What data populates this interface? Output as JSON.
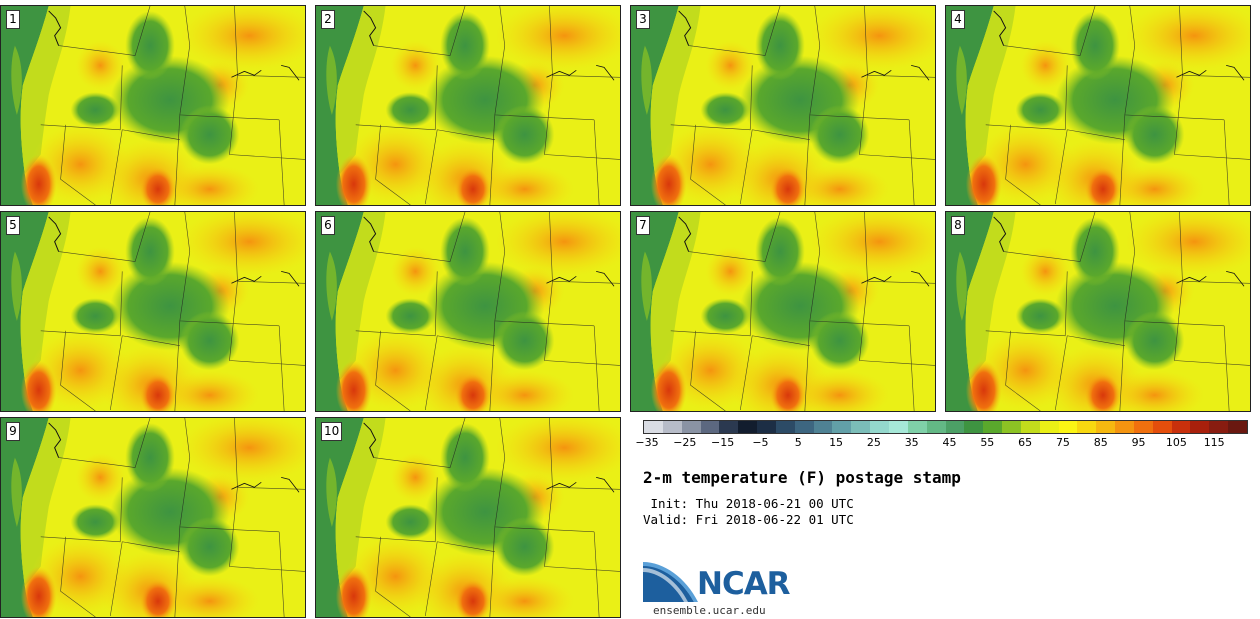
{
  "panels": [
    {
      "label": "1"
    },
    {
      "label": "2"
    },
    {
      "label": "3"
    },
    {
      "label": "4"
    },
    {
      "label": "5"
    },
    {
      "label": "6"
    },
    {
      "label": "7"
    },
    {
      "label": "8"
    },
    {
      "label": "9"
    },
    {
      "label": "10"
    }
  ],
  "colorbar": {
    "colors": [
      "#dadde4",
      "#b7bcc8",
      "#8a93a4",
      "#5c6880",
      "#2b3950",
      "#121d2e",
      "#1c2e45",
      "#2c4b66",
      "#3d6680",
      "#4f8294",
      "#62a0a8",
      "#7bbdb8",
      "#94d8cd",
      "#a6e8d8",
      "#7fd0a8",
      "#63b885",
      "#4ca066",
      "#3e9441",
      "#5aa82c",
      "#8cc324",
      "#c2dc1c",
      "#eaf016",
      "#fbf514",
      "#f8d810",
      "#f6b810",
      "#f49410",
      "#f0700e",
      "#e44e0c",
      "#c8300c",
      "#a8200c",
      "#881c10",
      "#6a1810"
    ],
    "tick_labels": [
      "−35",
      "−25",
      "−15",
      "−5",
      "5",
      "15",
      "25",
      "35",
      "45",
      "55",
      "65",
      "75",
      "85",
      "95",
      "105",
      "115"
    ]
  },
  "title": "2-m temperature (F) postage stamp",
  "init": " Init: Thu 2018-06-21 00 UTC",
  "valid": "Valid: Fri 2018-06-22 01 UTC",
  "logo": {
    "text": "NCAR",
    "url": "ensemble.ucar.edu",
    "color": "#1d5f9e"
  }
}
